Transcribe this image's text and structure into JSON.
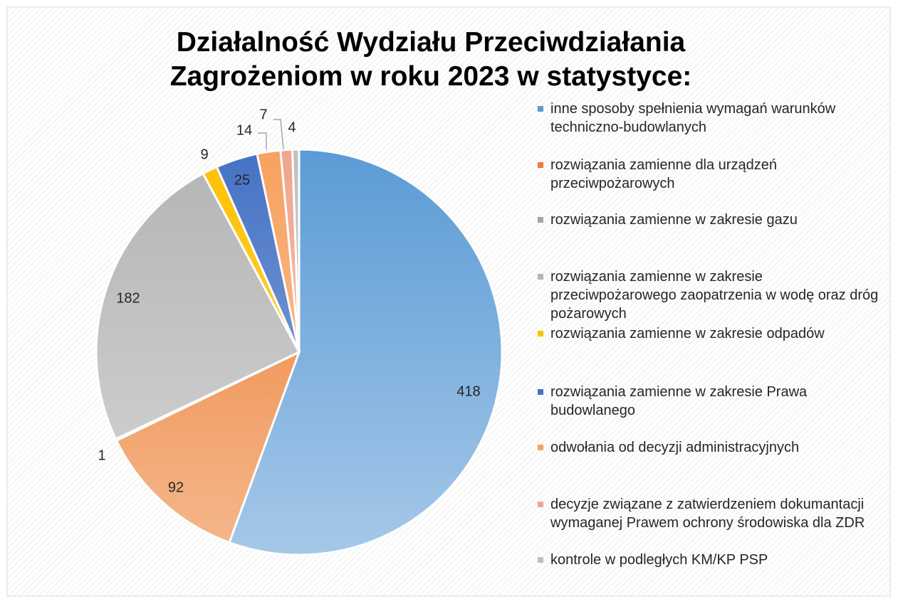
{
  "chart_data": {
    "type": "pie",
    "title": "Działalność Wydziału Przeciwdziałania Zagrożeniom w roku 2023 w statystyce:",
    "categories": [
      "inne sposoby spełnienia wymagań warunków techniczno-budowlanych",
      "rozwiązania zamienne dla urządzeń przeciwpożarowych",
      "rozwiązania zamienne w zakresie gazu",
      "rozwiązania zamienne w zakresie przeciwpożarowego zaopatrzenia w wodę oraz dróg pożarowych",
      "rozwiązania zamienne w zakresie odpadów",
      "rozwiązania zamienne w zakresie Prawa budowlanego",
      "odwołania od decyzji administracyjnych",
      "decyzje związane z zatwierdzeniem dokumantacji wymaganej Prawem ochrony środowiska dla ZDR",
      "kontrole w podległych KM/KP PSP"
    ],
    "values": [
      418,
      92,
      1,
      182,
      9,
      25,
      14,
      7,
      4
    ],
    "colors": [
      "#5b9bd5",
      "#ed7d31",
      "#a5a5a5",
      "#b4b4b4",
      "#ffc000",
      "#4472c4",
      "#f7a15f",
      "#f0a58f",
      "#bfbfbf"
    ],
    "legend": "right"
  }
}
